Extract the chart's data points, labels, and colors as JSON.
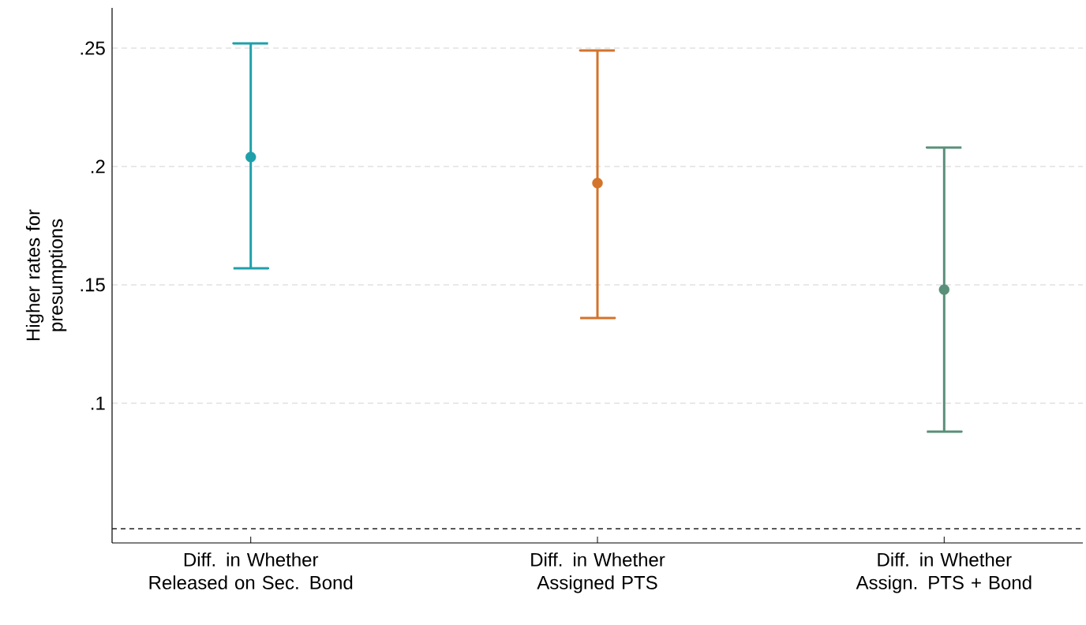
{
  "chart_data": {
    "type": "scatter",
    "ylabel": "Higher rates for presumptions",
    "categories": [
      "Diff. in Whether Released on Sec. Bond",
      "Diff. in Whether Assigned PTS",
      "Diff. in Whether Assign. PTS + Bond"
    ],
    "values": [
      0.204,
      0.193,
      0.148
    ],
    "errors": [
      [
        0.157,
        0.252
      ],
      [
        0.136,
        0.249
      ],
      [
        0.088,
        0.208
      ]
    ],
    "colors": [
      "#1ea0ab",
      "#d4732a",
      "#5a8f79"
    ],
    "marker": "circle",
    "ylim": [
      0.041,
      0.267
    ],
    "yticks": [
      {
        "value": 0.1,
        "label": ".1"
      },
      {
        "value": 0.15,
        "label": ".15"
      },
      {
        "value": 0.2,
        "label": ".2"
      },
      {
        "value": 0.25,
        "label": ".25"
      }
    ],
    "grid": "y",
    "ref_lines": [
      {
        "axis": "y",
        "value": 0.047,
        "color": "#222222",
        "line_style": "dashed"
      }
    ]
  }
}
